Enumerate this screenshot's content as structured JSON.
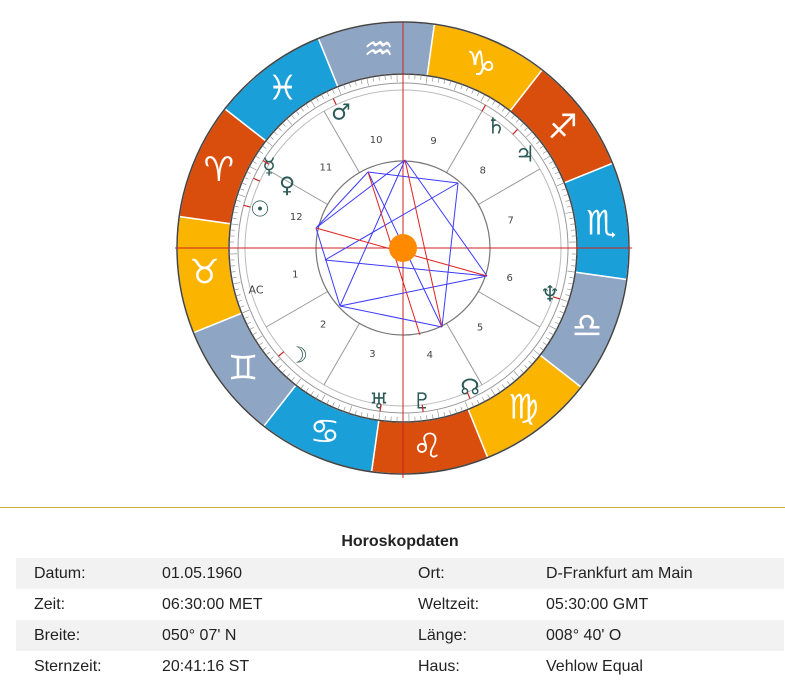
{
  "chart": {
    "zodiac_signs": [
      {
        "name": "Aries",
        "glyph": "♈",
        "color": "#d94e0c"
      },
      {
        "name": "Taurus",
        "glyph": "♉",
        "color": "#fbb400"
      },
      {
        "name": "Gemini",
        "glyph": "♊",
        "color": "#8fa5c4"
      },
      {
        "name": "Cancer",
        "glyph": "♋",
        "color": "#1a9fd8"
      },
      {
        "name": "Leo",
        "glyph": "♌",
        "color": "#d94e0c"
      },
      {
        "name": "Virgo",
        "glyph": "♍",
        "color": "#fbb400"
      },
      {
        "name": "Libra",
        "glyph": "♎",
        "color": "#8fa5c4"
      },
      {
        "name": "Scorpio",
        "glyph": "♏",
        "color": "#1a9fd8"
      },
      {
        "name": "Sagittarius",
        "glyph": "♐",
        "color": "#d94e0c"
      },
      {
        "name": "Capricorn",
        "glyph": "♑",
        "color": "#fbb400"
      },
      {
        "name": "Aquarius",
        "glyph": "♒",
        "color": "#8fa5c4"
      },
      {
        "name": "Pisces",
        "glyph": "♓",
        "color": "#1a9fd8"
      }
    ],
    "ascendant_label": "AC",
    "house_numbers": [
      "1",
      "2",
      "3",
      "4",
      "5",
      "6",
      "7",
      "8",
      "9",
      "10",
      "11",
      "12"
    ],
    "planets": [
      {
        "name": "Mars",
        "glyph": "♂"
      },
      {
        "name": "Saturn",
        "glyph": "♄"
      },
      {
        "name": "Jupiter",
        "glyph": "♃"
      },
      {
        "name": "Mercury",
        "glyph": "☿"
      },
      {
        "name": "Venus",
        "glyph": "♀"
      },
      {
        "name": "Sun",
        "glyph": "☉"
      },
      {
        "name": "Neptune",
        "glyph": "♆"
      },
      {
        "name": "Moon",
        "glyph": "☽"
      },
      {
        "name": "Node",
        "glyph": "☊"
      },
      {
        "name": "Uranus",
        "glyph": "♅"
      },
      {
        "name": "Pluto",
        "glyph": "♇"
      }
    ],
    "colors": {
      "axis": "#cc2222",
      "aspect_blue": "#3a3aff",
      "aspect_red": "#e02020",
      "center": "#ff8a00",
      "house_line": "#999999"
    }
  },
  "horoscope": {
    "title": "Horoskopdaten",
    "rows": [
      {
        "label1": "Datum:",
        "value1": "01.05.1960",
        "label2": "Ort:",
        "value2": "D-Frankfurt am Main"
      },
      {
        "label1": "Zeit:",
        "value1": "06:30:00 MET",
        "label2": "Weltzeit:",
        "value2": "05:30:00 GMT"
      },
      {
        "label1": "Breite:",
        "value1": "050° 07' N",
        "label2": "Länge:",
        "value2": "008° 40' O"
      },
      {
        "label1": "Sternzeit:",
        "value1": "20:41:16 ST",
        "label2": "Haus:",
        "value2": "Vehlow Equal"
      }
    ]
  }
}
